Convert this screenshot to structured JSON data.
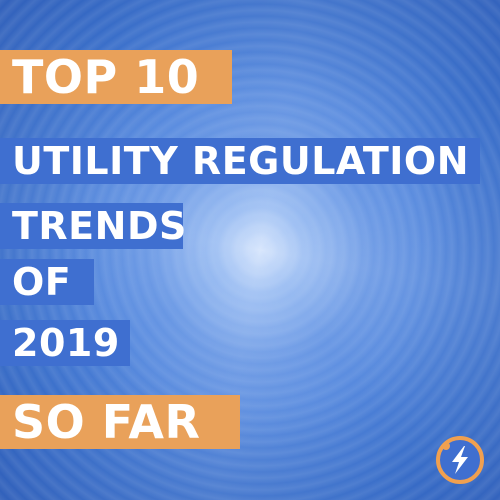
{
  "headline": {
    "line1": "TOP 10",
    "line2": "UTILITY REGULATION",
    "line3": "TRENDS",
    "line4": "OF",
    "line5": "2019",
    "line6": "SO FAR"
  },
  "colors": {
    "accent_orange": "#e9a15a",
    "label_blue": "#3f6fd0",
    "background_blue": "#3f73cc"
  },
  "logo": {
    "icon": "lightning-bolt-icon"
  }
}
